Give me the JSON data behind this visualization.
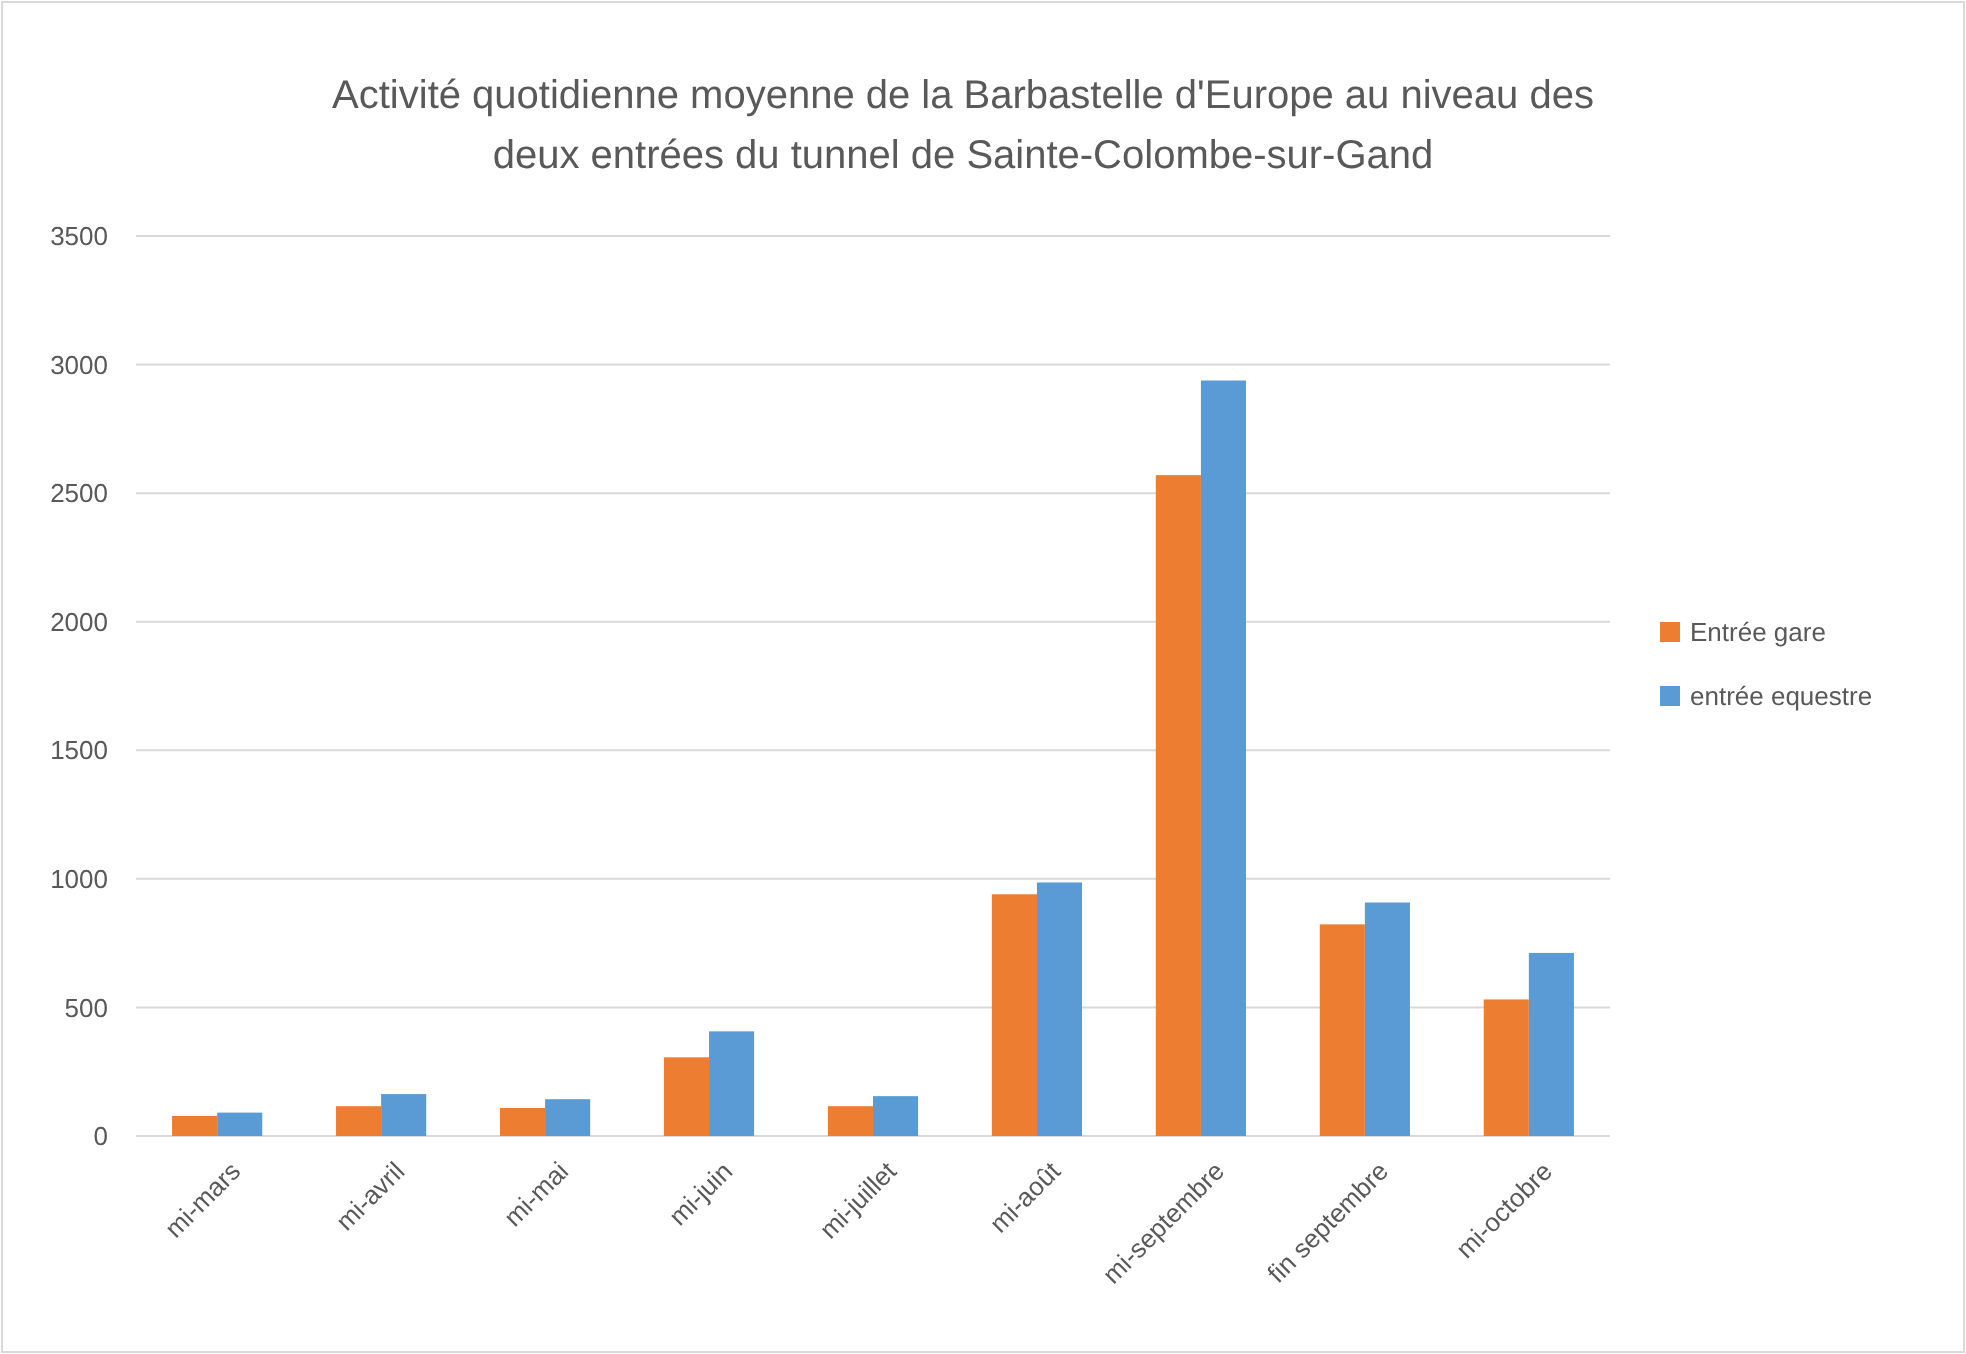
{
  "chart_data": {
    "type": "bar",
    "title": "Activité quotidienne moyenne de la Barbastelle d'Europe au niveau des deux entrées du tunnel de Sainte-Colombe-sur-Gand",
    "categories": [
      "mi-mars",
      "mi-avril",
      "mi-mai",
      "mi-juin",
      "mi-juillet",
      "mi-août",
      "mi-septembre",
      "fin septembre",
      "mi-octobre"
    ],
    "series": [
      {
        "name": "Entrée gare",
        "color": "#ed7d31",
        "values": [
          78,
          116,
          109,
          306,
          116,
          940,
          2570,
          823,
          531
        ]
      },
      {
        "name": "entrée equestre",
        "color": "#5b9bd5",
        "values": [
          91,
          163,
          143,
          407,
          155,
          986,
          2938,
          908,
          712
        ]
      }
    ],
    "ylim": [
      0,
      3500
    ],
    "yticks": [
      0,
      500,
      1000,
      1500,
      2000,
      2500,
      3000,
      3500
    ],
    "grid": "y",
    "legend": "right"
  }
}
